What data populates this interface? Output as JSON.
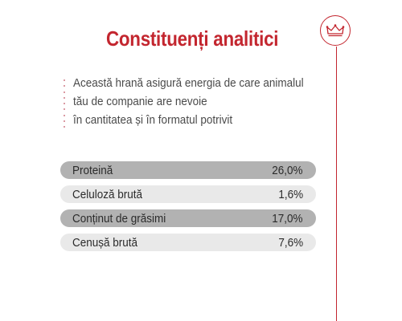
{
  "header": {
    "title": "Constituenți analitici",
    "accent_color": "#c3262f",
    "badge_icon": "crown-icon"
  },
  "description": {
    "lines": [
      "Această hrană asigură energia de care animalul",
      "tău de companie are nevoie",
      "în cantitatea și în formatul potrivit"
    ]
  },
  "constituents": [
    {
      "label": "Proteină",
      "value": "26,0%"
    },
    {
      "label": "Celuloză brută",
      "value": "1,6%"
    },
    {
      "label": "Conținut de grăsimi",
      "value": "17,0%"
    },
    {
      "label": "Cenușă brută",
      "value": "7,6%"
    }
  ]
}
